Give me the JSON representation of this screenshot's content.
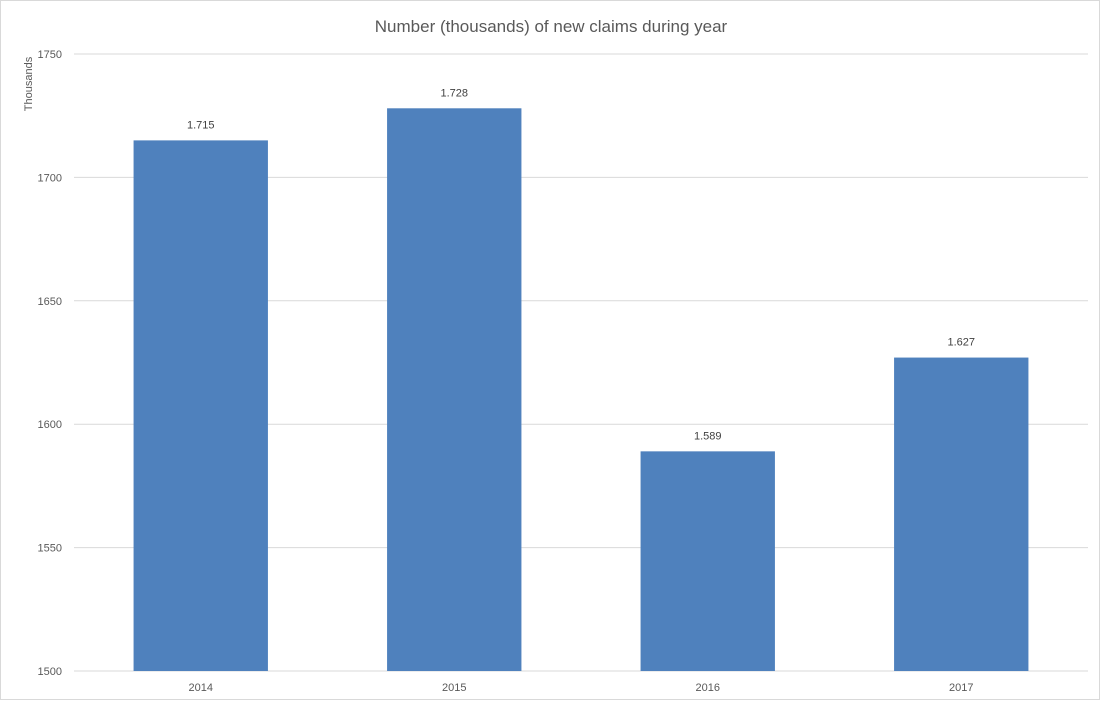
{
  "chart_data": {
    "type": "bar",
    "title": "Number (thousands) of new claims during year",
    "ylabel": "Thousands",
    "xlabel": "",
    "categories": [
      "2014",
      "2015",
      "2016",
      "2017"
    ],
    "values": [
      1715,
      1728,
      1589,
      1627
    ],
    "data_labels": [
      "1.715",
      "1.728",
      "1.589",
      "1.627"
    ],
    "ylim": [
      1500,
      1750
    ],
    "yticks": [
      1500,
      1550,
      1600,
      1650,
      1700,
      1750
    ],
    "grid": true,
    "legend": "none",
    "bar_color": "#4f81bd"
  }
}
